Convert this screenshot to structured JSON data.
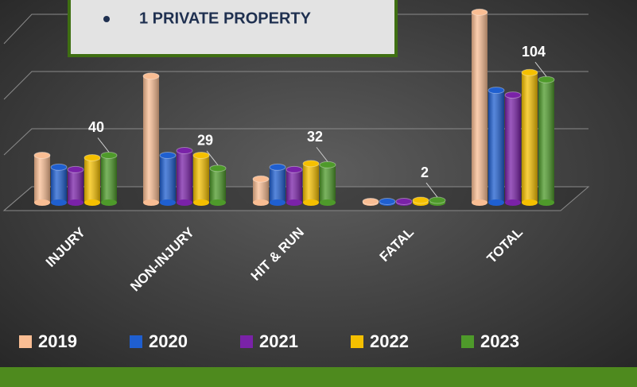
{
  "chart_data": {
    "type": "bar",
    "annotation": "1 PRIVATE PROPERTY",
    "categories": [
      "INJURY",
      "NON-INJURY",
      "HIT & RUN",
      "FATAL",
      "TOTAL"
    ],
    "series": [
      {
        "name": "2019",
        "color": "#f9bd93",
        "values": [
          40,
          107,
          20,
          1,
          161
        ]
      },
      {
        "name": "2020",
        "color": "#1f5fd0",
        "values": [
          30,
          40,
          30,
          1,
          95
        ]
      },
      {
        "name": "2021",
        "color": "#7a22a8",
        "values": [
          28,
          44,
          28,
          1,
          91
        ]
      },
      {
        "name": "2022",
        "color": "#f5c000",
        "values": [
          38,
          40,
          33,
          2,
          110
        ]
      },
      {
        "name": "2023",
        "color": "#4e9a2a",
        "values": [
          40,
          29,
          32,
          2,
          104
        ],
        "data_labels": true
      }
    ],
    "ylim": [
      0,
      170
    ]
  }
}
